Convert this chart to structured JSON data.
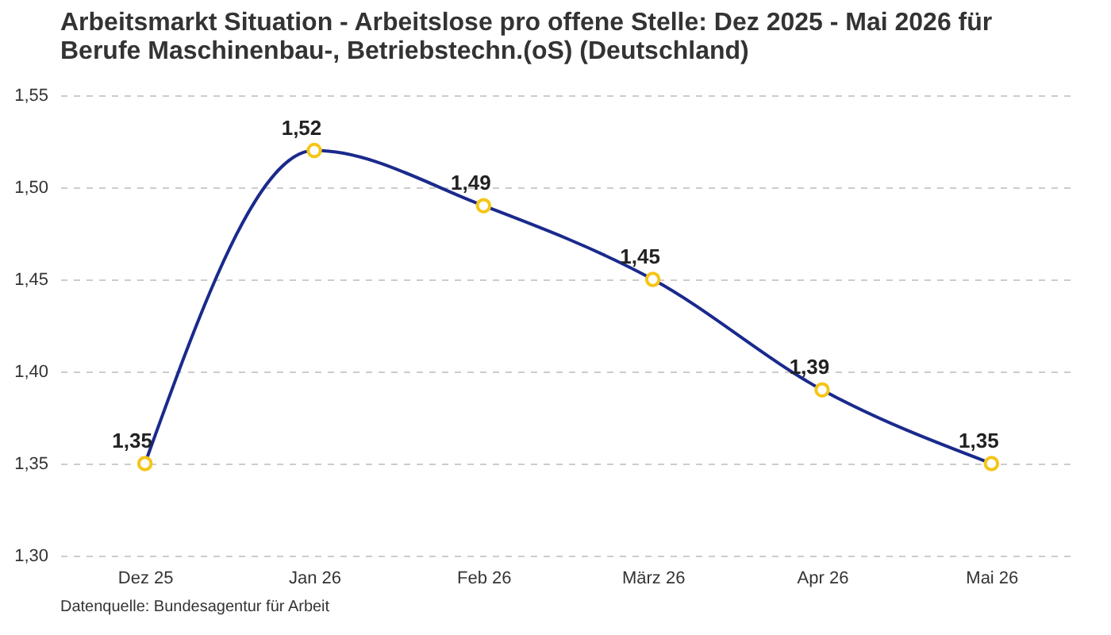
{
  "chart_data": {
    "type": "line",
    "title": [
      "Arbeitsmarkt Situation - Arbeitslose pro offene Stelle: Dez 2025 - Mai 2026 für",
      "Berufe Maschinenbau-, Betriebstechn.(oS) (Deutschland)"
    ],
    "categories": [
      "Dez 25",
      "Jan 26",
      "Feb 26",
      "März 26",
      "Apr 26",
      "Mai 26"
    ],
    "series": [
      {
        "color": "#1a2a8c",
        "values": [
          1.35,
          1.52,
          1.49,
          1.45,
          1.39,
          1.35
        ],
        "value_labels": [
          "1,35",
          "1,52",
          "1,49",
          "1,45",
          "1,39",
          "1,35"
        ]
      }
    ],
    "ylim": [
      1.3,
      1.55
    ],
    "yticks": [
      {
        "value": 1.3,
        "label": "1,30"
      },
      {
        "value": 1.35,
        "label": "1,35"
      },
      {
        "value": 1.4,
        "label": "1,40"
      },
      {
        "value": 1.45,
        "label": "1,45"
      },
      {
        "value": 1.5,
        "label": "1,50"
      },
      {
        "value": 1.55,
        "label": "1,55"
      }
    ],
    "grid": "y",
    "marker": "circle",
    "line_style": "solid",
    "annotations": [
      "Datenquelle: Bundesagentur für Arbeit"
    ]
  }
}
